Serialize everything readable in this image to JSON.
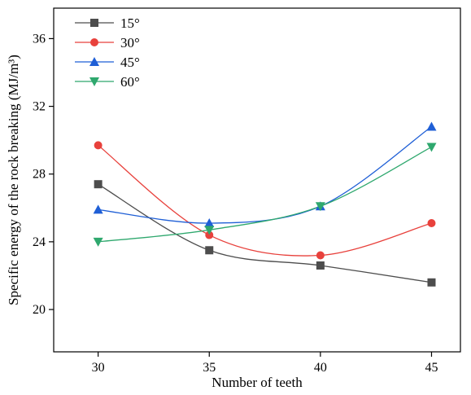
{
  "chart_data": {
    "type": "line",
    "xlabel": "Number of teeth",
    "ylabel": "Specific energy of the rock breaking (MJ/m³)",
    "x": [
      30,
      35,
      40,
      45
    ],
    "x_ticks": [
      "30",
      "35",
      "40",
      "45"
    ],
    "y_ticks": [
      "20",
      "24",
      "28",
      "32",
      "36"
    ],
    "xlim": [
      28,
      46.3
    ],
    "ylim": [
      17.5,
      37.8
    ],
    "grid": false,
    "legend_position": "top-left",
    "series": [
      {
        "name": "15°",
        "marker": "square",
        "color": "#4d4d4d",
        "values": [
          27.4,
          23.5,
          22.6,
          21.6
        ]
      },
      {
        "name": "30°",
        "marker": "circle",
        "color": "#e8413c",
        "values": [
          29.7,
          24.4,
          23.2,
          25.1
        ]
      },
      {
        "name": "45°",
        "marker": "triangle-up",
        "color": "#1f5fd6",
        "values": [
          25.9,
          25.1,
          26.1,
          30.8
        ]
      },
      {
        "name": "60°",
        "marker": "triangle-down",
        "color": "#2fa86e",
        "values": [
          24.0,
          24.7,
          26.1,
          29.6
        ]
      }
    ]
  }
}
